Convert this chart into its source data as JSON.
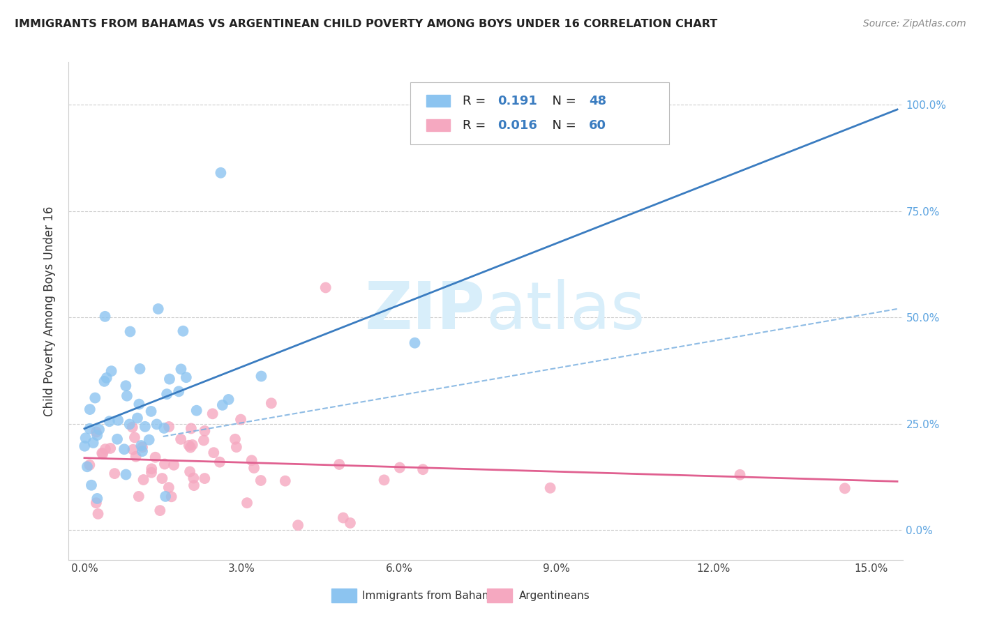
{
  "title": "IMMIGRANTS FROM BAHAMAS VS ARGENTINEAN CHILD POVERTY AMONG BOYS UNDER 16 CORRELATION CHART",
  "source": "Source: ZipAtlas.com",
  "ylabel": "Child Poverty Among Boys Under 16",
  "legend_label1": "Immigrants from Bahamas",
  "legend_label2": "Argentineans",
  "R1": "0.191",
  "N1": "48",
  "R2": "0.016",
  "N2": "60",
  "color1": "#8CC4F0",
  "color2": "#F5A8C0",
  "line_color1": "#3A7CC0",
  "line_color2": "#E06090",
  "dash_color": "#7AB0E0",
  "watermark_color": "#D8EEFA",
  "right_tick_color": "#5BA3E0",
  "x_ticks": [
    0.0,
    0.03,
    0.06,
    0.09,
    0.12,
    0.15
  ],
  "x_tick_labels": [
    "0.0%",
    "3.0%",
    "6.0%",
    "9.0%",
    "12.0%",
    "15.0%"
  ],
  "y_ticks": [
    0.0,
    0.25,
    0.5,
    0.75,
    1.0
  ],
  "y_tick_labels_right": [
    "0.0%",
    "25.0%",
    "50.0%",
    "75.0%",
    "100.0%"
  ],
  "xlim": [
    -0.003,
    0.156
  ],
  "ylim": [
    -0.07,
    1.1
  ]
}
